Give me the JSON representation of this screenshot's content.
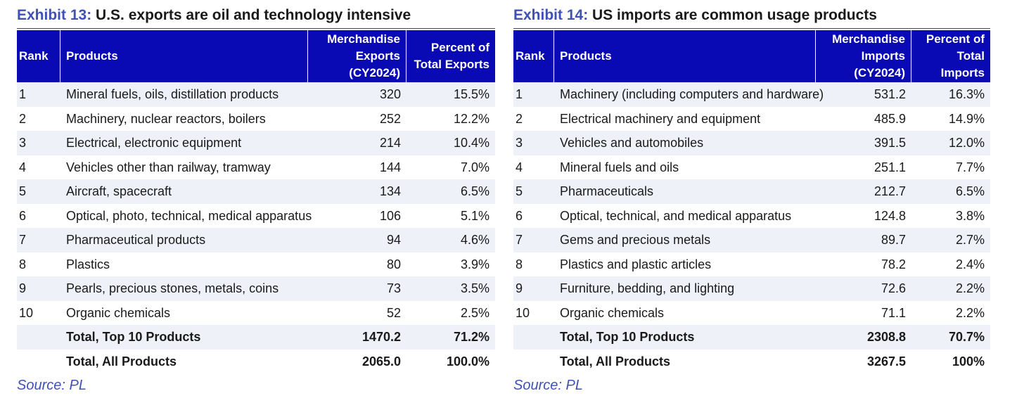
{
  "exhibit13": {
    "label": "Exhibit 13:",
    "title": "U.S. exports are oil and technology intensive",
    "headers": {
      "rank": "Rank",
      "products": "Products",
      "value_line1": "Merchandise",
      "value_line2": "Exports",
      "value_line3": "(CY2024)",
      "pct_line1": "Percent of",
      "pct_line2": "Total Exports"
    },
    "rows": [
      {
        "rank": "1",
        "product": "Mineral fuels, oils, distillation products",
        "value": "320",
        "pct": "15.5%"
      },
      {
        "rank": "2",
        "product": "Machinery, nuclear reactors, boilers",
        "value": "252",
        "pct": "12.2%"
      },
      {
        "rank": "3",
        "product": "Electrical, electronic equipment",
        "value": "214",
        "pct": "10.4%"
      },
      {
        "rank": "4",
        "product": "Vehicles other than railway, tramway",
        "value": "144",
        "pct": "7.0%"
      },
      {
        "rank": "5",
        "product": "Aircraft, spacecraft",
        "value": "134",
        "pct": "6.5%"
      },
      {
        "rank": "6",
        "product": "Optical, photo, technical, medical apparatus",
        "value": "106",
        "pct": "5.1%"
      },
      {
        "rank": "7",
        "product": "Pharmaceutical products",
        "value": "94",
        "pct": "4.6%"
      },
      {
        "rank": "8",
        "product": "Plastics",
        "value": "80",
        "pct": "3.9%"
      },
      {
        "rank": "9",
        "product": "Pearls, precious stones, metals, coins",
        "value": "73",
        "pct": "3.5%"
      },
      {
        "rank": "10",
        "product": "Organic chemicals",
        "value": "52",
        "pct": "2.5%"
      }
    ],
    "totals": [
      {
        "product": "Total, Top 10 Products",
        "value": "1470.2",
        "pct": "71.2%"
      },
      {
        "product": "Total, All Products",
        "value": "2065.0",
        "pct": "100.0%"
      }
    ],
    "source": "Source: PL"
  },
  "exhibit14": {
    "label": "Exhibit 14:",
    "title": "US imports are common usage products",
    "headers": {
      "rank": "Rank",
      "products": "Products",
      "value_line1": "Merchandise",
      "value_line2": "Imports",
      "value_line3": "(CY2024)",
      "pct_line1": "Percent of",
      "pct_line2": "Total",
      "pct_line3": "Imports"
    },
    "rows": [
      {
        "rank": "1",
        "product": "Machinery (including computers and hardware)",
        "value": "531.2",
        "pct": "16.3%"
      },
      {
        "rank": "2",
        "product": "Electrical machinery and equipment",
        "value": "485.9",
        "pct": "14.9%"
      },
      {
        "rank": "3",
        "product": "Vehicles and automobiles",
        "value": "391.5",
        "pct": "12.0%"
      },
      {
        "rank": "4",
        "product": "Mineral fuels and oils",
        "value": "251.1",
        "pct": "7.7%"
      },
      {
        "rank": "5",
        "product": "Pharmaceuticals",
        "value": "212.7",
        "pct": "6.5%"
      },
      {
        "rank": "6",
        "product": "Optical, technical, and medical apparatus",
        "value": "124.8",
        "pct": "3.8%"
      },
      {
        "rank": "7",
        "product": "Gems and precious metals",
        "value": "89.7",
        "pct": "2.7%"
      },
      {
        "rank": "8",
        "product": "Plastics and plastic articles",
        "value": "78.2",
        "pct": "2.4%"
      },
      {
        "rank": "9",
        "product": "Furniture, bedding, and lighting",
        "value": "72.6",
        "pct": "2.2%"
      },
      {
        "rank": "10",
        "product": "Organic chemicals",
        "value": "71.1",
        "pct": "2.2%"
      }
    ],
    "totals": [
      {
        "product": "Total, Top 10 Products",
        "value": "2308.8",
        "pct": "70.7%"
      },
      {
        "product": "Total, All Products",
        "value": "3267.5",
        "pct": "100%"
      }
    ],
    "source": "Source: PL"
  },
  "colors": {
    "header_bg": "#0a0ab4",
    "label_blue": "#3f51b5",
    "band": "#eef1f7"
  }
}
